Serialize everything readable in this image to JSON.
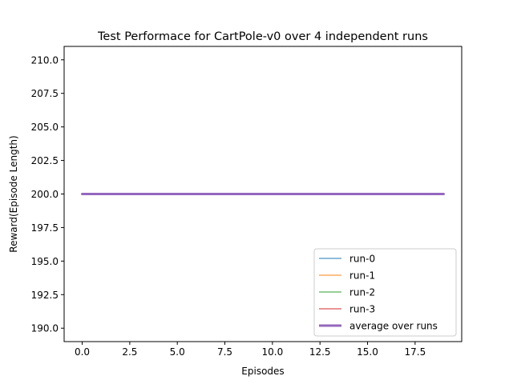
{
  "chart_data": {
    "type": "line",
    "title": "Test Performace for CartPole-v0 over 4 independent runs",
    "xlabel": "Episodes",
    "ylabel": "Reward(Episode Length)",
    "xlim": [
      -0.95,
      19.95
    ],
    "ylim": [
      189,
      211
    ],
    "xticks": [
      0.0,
      2.5,
      5.0,
      7.5,
      10.0,
      12.5,
      15.0,
      17.5
    ],
    "xtick_labels": [
      "0.0",
      "2.5",
      "5.0",
      "7.5",
      "10.0",
      "12.5",
      "15.0",
      "17.5"
    ],
    "yticks": [
      190.0,
      192.5,
      195.0,
      197.5,
      200.0,
      202.5,
      205.0,
      207.5,
      210.0
    ],
    "ytick_labels": [
      "190.0",
      "192.5",
      "195.0",
      "197.5",
      "200.0",
      "202.5",
      "205.0",
      "207.5",
      "210.0"
    ],
    "x": [
      0,
      1,
      2,
      3,
      4,
      5,
      6,
      7,
      8,
      9,
      10,
      11,
      12,
      13,
      14,
      15,
      16,
      17,
      18,
      19
    ],
    "series": [
      {
        "name": "run-0",
        "color": "#1f77b4",
        "width": 1,
        "values": [
          200,
          200,
          200,
          200,
          200,
          200,
          200,
          200,
          200,
          200,
          200,
          200,
          200,
          200,
          200,
          200,
          200,
          200,
          200,
          200
        ]
      },
      {
        "name": "run-1",
        "color": "#ff7f0e",
        "width": 1,
        "values": [
          200,
          200,
          200,
          200,
          200,
          200,
          200,
          200,
          200,
          200,
          200,
          200,
          200,
          200,
          200,
          200,
          200,
          200,
          200,
          200
        ]
      },
      {
        "name": "run-2",
        "color": "#2ca02c",
        "width": 1,
        "values": [
          200,
          200,
          200,
          200,
          200,
          200,
          200,
          200,
          200,
          200,
          200,
          200,
          200,
          200,
          200,
          200,
          200,
          200,
          200,
          200
        ]
      },
      {
        "name": "run-3",
        "color": "#d62728",
        "width": 1,
        "values": [
          200,
          200,
          200,
          200,
          200,
          200,
          200,
          200,
          200,
          200,
          200,
          200,
          200,
          200,
          200,
          200,
          200,
          200,
          200,
          200
        ]
      },
      {
        "name": "average over runs",
        "color": "#9467bd",
        "width": 3,
        "values": [
          200,
          200,
          200,
          200,
          200,
          200,
          200,
          200,
          200,
          200,
          200,
          200,
          200,
          200,
          200,
          200,
          200,
          200,
          200,
          200
        ]
      }
    ],
    "grid": false,
    "legend_position": "lower-right"
  }
}
